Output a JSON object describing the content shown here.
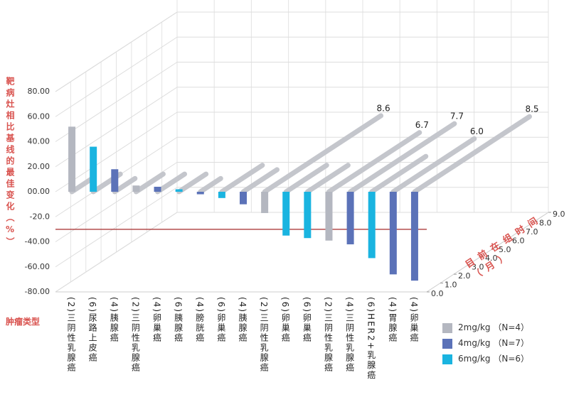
{
  "chart_data": {
    "type": "bar",
    "y_axis_title": "靶病灶相比基线的最佳变化（%）",
    "x_axis_title": "肿瘤类型",
    "z_axis_title": "目前在组时间（月）",
    "categories": [
      "(2)三阴性乳腺癌",
      "(6)尿路上皮癌",
      "(4)胰腺癌",
      "(2)三阴性乳腺癌",
      "(4)卵巢癌",
      "(6)胰腺癌",
      "(4)膀胱癌",
      "(6)卵巢癌",
      "(4)胰腺癌",
      "(2)三阴性乳腺癌",
      "(6)卵巢癌",
      "(6)卵巢癌",
      "(2)三阴性乳腺癌",
      "(4)三阴性乳腺癌",
      "(6)HER2+乳腺癌",
      "(4)胃腺癌",
      "(4)卵巢癌"
    ],
    "series": [
      {
        "name": "2mg/kg （N=4）",
        "color": "#b4b7c0",
        "values": [
          52,
          null,
          null,
          5,
          null,
          null,
          null,
          null,
          null,
          -17,
          null,
          null,
          -39,
          null,
          null,
          null,
          null
        ]
      },
      {
        "name": "4mg/kg （N=7）",
        "color": "#5b72b8",
        "values": [
          null,
          null,
          18,
          null,
          4,
          null,
          -2,
          null,
          -10,
          null,
          null,
          null,
          null,
          -42,
          null,
          -66,
          -71
        ]
      },
      {
        "name": "6mg/kg （N=6）",
        "color": "#1ab4e0",
        "values": [
          null,
          36,
          null,
          null,
          null,
          2,
          null,
          -5,
          null,
          null,
          -35,
          -37,
          null,
          null,
          -53,
          null,
          null
        ]
      }
    ],
    "durations": {
      "color": "#c4c6cc",
      "values": [
        1.5,
        2,
        1.5,
        2,
        2,
        2,
        1.5,
        3,
        2.5,
        8.6,
        3,
        3,
        6.7,
        7.7,
        4,
        6.0,
        8.5
      ],
      "value_labels": [
        null,
        null,
        null,
        null,
        null,
        null,
        null,
        null,
        null,
        "8.6",
        null,
        null,
        "6.7",
        "7.7",
        null,
        "6.0",
        "8.5"
      ]
    },
    "ylim": [
      -80,
      80
    ],
    "yticks": [
      {
        "value": -80,
        "label": "-80.00"
      },
      {
        "value": -60,
        "label": "-60.00"
      },
      {
        "value": -40,
        "label": "-40.00"
      },
      {
        "value": -20,
        "label": "-20.0"
      },
      {
        "value": 0,
        "label": "00.00"
      },
      {
        "value": 20,
        "label": "20.00"
      },
      {
        "value": 40,
        "label": "40.00"
      },
      {
        "value": 60,
        "label": "60.00"
      },
      {
        "value": 80,
        "label": "80.00"
      }
    ],
    "zlim": [
      0,
      9
    ],
    "zticks": [
      {
        "value": 0,
        "label": "0.0"
      },
      {
        "value": 1,
        "label": "1.0"
      },
      {
        "value": 2,
        "label": "2.0"
      },
      {
        "value": 3,
        "label": "3.0"
      },
      {
        "value": 4,
        "label": "4.0"
      },
      {
        "value": 5,
        "label": "5.0"
      },
      {
        "value": 6,
        "label": "6.0"
      },
      {
        "value": 7,
        "label": "7.0"
      },
      {
        "value": 8,
        "label": "8.0"
      },
      {
        "value": 9,
        "label": "9.0"
      }
    ],
    "reference_line": {
      "value": -30,
      "color": "#a52a2a"
    },
    "grid": true
  }
}
